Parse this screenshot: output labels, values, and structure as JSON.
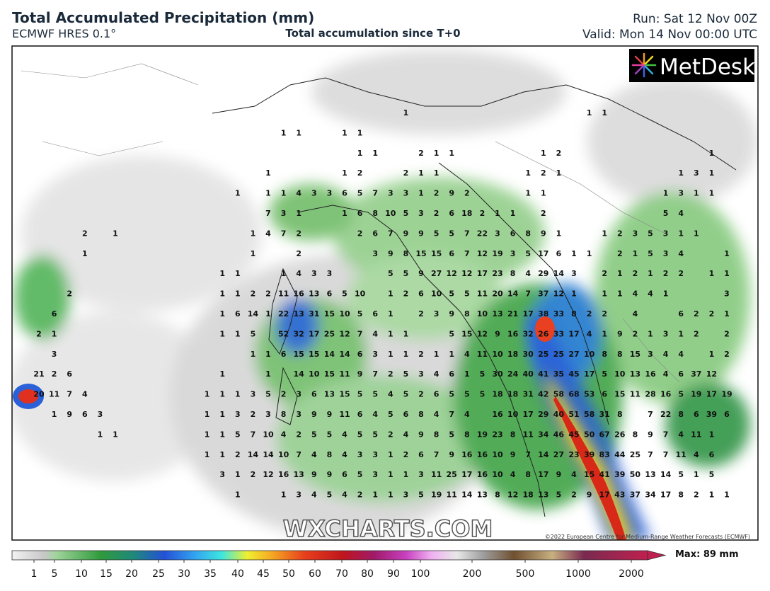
{
  "header": {
    "title": "Total Accumulated Precipitation (mm)",
    "model": "ECMWF HRES 0.1°",
    "subtitle": "Total accumulation since T+0",
    "run": "Run: Sat 12 Nov 00Z",
    "valid": "Valid: Mon 14 Nov 00:00 UTC"
  },
  "logo": "MetDesk",
  "watermark": "WXCHARTS.COM",
  "credit": "©2022 European Centre for Medium-Range Weather Forecasts (ECMWF)",
  "map": {
    "values": [
      [
        null,
        null,
        null,
        null,
        null,
        null,
        null,
        null,
        null,
        null,
        null,
        null,
        null,
        null,
        null,
        null,
        null,
        null,
        null,
        null,
        null,
        null,
        null,
        null,
        1,
        null,
        null,
        null,
        null,
        null,
        null,
        null,
        null,
        null,
        null,
        null,
        1,
        1
      ],
      [
        null,
        null,
        null,
        null,
        null,
        null,
        null,
        null,
        null,
        null,
        null,
        null,
        null,
        null,
        null,
        null,
        1,
        1,
        null,
        null,
        1,
        1
      ],
      [
        null,
        null,
        null,
        null,
        null,
        null,
        null,
        null,
        null,
        null,
        null,
        null,
        null,
        null,
        null,
        null,
        null,
        null,
        null,
        null,
        null,
        1,
        1,
        null,
        null,
        2,
        1,
        1,
        null,
        null,
        null,
        null,
        null,
        1,
        2,
        null,
        null,
        null,
        null,
        null,
        null,
        null,
        null,
        null,
        1
      ],
      [
        null,
        null,
        null,
        null,
        null,
        null,
        null,
        null,
        null,
        null,
        null,
        null,
        null,
        null,
        null,
        1,
        null,
        null,
        null,
        null,
        1,
        2,
        null,
        null,
        2,
        1,
        1,
        null,
        null,
        null,
        null,
        null,
        1,
        2,
        1,
        null,
        null,
        null,
        null,
        null,
        null,
        null,
        1,
        3,
        1
      ],
      [
        null,
        null,
        null,
        null,
        null,
        null,
        null,
        null,
        null,
        null,
        null,
        null,
        null,
        1,
        null,
        1,
        1,
        4,
        3,
        3,
        6,
        5,
        7,
        3,
        3,
        1,
        2,
        9,
        2,
        null,
        null,
        null,
        1,
        1,
        null,
        null,
        null,
        null,
        null,
        null,
        null,
        1,
        3,
        1,
        1
      ],
      [
        null,
        null,
        null,
        null,
        null,
        null,
        null,
        null,
        null,
        null,
        null,
        null,
        null,
        null,
        null,
        7,
        3,
        1,
        null,
        null,
        1,
        6,
        8,
        10,
        5,
        3,
        2,
        6,
        18,
        2,
        1,
        1,
        null,
        2,
        null,
        null,
        null,
        null,
        null,
        null,
        null,
        5,
        4
      ],
      [
        null,
        null,
        null,
        2,
        null,
        1,
        null,
        null,
        null,
        null,
        null,
        null,
        null,
        null,
        1,
        4,
        7,
        2,
        null,
        null,
        null,
        2,
        6,
        7,
        9,
        9,
        5,
        5,
        7,
        22,
        3,
        6,
        8,
        9,
        1,
        null,
        null,
        1,
        2,
        3,
        5,
        3,
        1,
        1
      ],
      [
        null,
        null,
        null,
        1,
        null,
        null,
        null,
        null,
        null,
        null,
        null,
        null,
        null,
        null,
        1,
        null,
        null,
        2,
        null,
        null,
        null,
        null,
        3,
        9,
        8,
        15,
        15,
        6,
        7,
        12,
        19,
        3,
        5,
        17,
        6,
        1,
        1,
        null,
        2,
        1,
        5,
        3,
        4,
        null,
        null,
        1
      ],
      [
        null,
        null,
        null,
        null,
        null,
        null,
        null,
        null,
        null,
        null,
        null,
        null,
        1,
        1,
        null,
        null,
        1,
        4,
        3,
        3,
        null,
        null,
        null,
        5,
        5,
        9,
        27,
        12,
        12,
        17,
        23,
        8,
        4,
        29,
        14,
        3,
        null,
        2,
        1,
        2,
        1,
        2,
        2,
        null,
        1,
        1
      ],
      [
        null,
        null,
        2,
        null,
        null,
        null,
        null,
        null,
        null,
        null,
        null,
        null,
        1,
        1,
        2,
        2,
        11,
        16,
        13,
        6,
        5,
        10,
        null,
        1,
        2,
        6,
        10,
        5,
        5,
        11,
        20,
        14,
        7,
        37,
        12,
        1,
        null,
        1,
        1,
        4,
        4,
        1,
        null,
        null,
        null,
        3
      ],
      [
        null,
        6,
        null,
        null,
        null,
        null,
        null,
        null,
        null,
        null,
        null,
        null,
        1,
        6,
        14,
        1,
        22,
        13,
        31,
        15,
        10,
        5,
        6,
        1,
        null,
        2,
        3,
        9,
        8,
        10,
        13,
        21,
        17,
        38,
        33,
        8,
        2,
        2,
        null,
        4,
        null,
        null,
        6,
        2,
        2,
        1
      ],
      [
        2,
        1,
        null,
        null,
        null,
        null,
        null,
        null,
        null,
        null,
        null,
        null,
        1,
        1,
        5,
        null,
        52,
        32,
        17,
        25,
        12,
        7,
        4,
        1,
        1,
        null,
        null,
        5,
        15,
        12,
        9,
        16,
        32,
        26,
        33,
        17,
        4,
        1,
        9,
        2,
        1,
        3,
        1,
        2,
        null,
        2
      ],
      [
        null,
        3,
        null,
        null,
        null,
        null,
        null,
        null,
        null,
        null,
        null,
        null,
        null,
        null,
        1,
        1,
        6,
        15,
        15,
        14,
        14,
        6,
        3,
        1,
        1,
        2,
        1,
        1,
        4,
        11,
        10,
        18,
        30,
        25,
        25,
        27,
        10,
        8,
        8,
        15,
        3,
        4,
        4,
        null,
        1,
        2
      ],
      [
        21,
        2,
        6,
        null,
        null,
        null,
        null,
        null,
        null,
        null,
        null,
        null,
        1,
        null,
        null,
        1,
        null,
        14,
        10,
        15,
        11,
        9,
        7,
        2,
        5,
        3,
        4,
        6,
        1,
        5,
        30,
        24,
        40,
        41,
        35,
        45,
        17,
        5,
        10,
        13,
        16,
        4,
        6,
        37,
        12
      ],
      [
        20,
        11,
        7,
        4,
        null,
        null,
        null,
        null,
        null,
        null,
        null,
        1,
        1,
        1,
        3,
        5,
        2,
        3,
        6,
        13,
        15,
        5,
        5,
        4,
        5,
        2,
        6,
        5,
        5,
        5,
        18,
        18,
        31,
        42,
        58,
        68,
        53,
        6,
        15,
        11,
        28,
        16,
        5,
        19,
        17,
        19
      ],
      [
        null,
        1,
        9,
        6,
        3,
        null,
        null,
        null,
        null,
        null,
        null,
        1,
        1,
        3,
        2,
        3,
        8,
        3,
        9,
        9,
        11,
        6,
        4,
        5,
        6,
        8,
        4,
        7,
        4,
        null,
        16,
        10,
        17,
        29,
        40,
        51,
        58,
        31,
        8,
        null,
        7,
        22,
        8,
        6,
        39,
        6
      ],
      [
        null,
        null,
        null,
        null,
        1,
        1,
        null,
        null,
        null,
        null,
        null,
        1,
        1,
        5,
        7,
        10,
        4,
        2,
        5,
        5,
        4,
        5,
        5,
        2,
        4,
        9,
        8,
        5,
        8,
        19,
        23,
        8,
        11,
        34,
        46,
        45,
        50,
        67,
        26,
        8,
        9,
        7,
        4,
        11,
        1
      ],
      [
        null,
        null,
        null,
        null,
        null,
        null,
        null,
        null,
        null,
        null,
        null,
        1,
        1,
        2,
        14,
        14,
        10,
        7,
        4,
        8,
        4,
        3,
        3,
        1,
        2,
        6,
        7,
        9,
        16,
        16,
        10,
        9,
        7,
        14,
        27,
        23,
        39,
        83,
        44,
        25,
        7,
        7,
        11,
        4,
        6
      ],
      [
        null,
        null,
        null,
        null,
        null,
        null,
        null,
        null,
        null,
        null,
        null,
        null,
        3,
        1,
        2,
        12,
        16,
        13,
        9,
        9,
        6,
        5,
        3,
        1,
        1,
        3,
        11,
        25,
        17,
        16,
        10,
        4,
        8,
        17,
        9,
        4,
        15,
        41,
        39,
        50,
        13,
        14,
        5,
        1,
        5
      ],
      [
        null,
        null,
        null,
        null,
        null,
        null,
        null,
        null,
        null,
        null,
        null,
        null,
        null,
        1,
        null,
        null,
        1,
        3,
        4,
        5,
        4,
        2,
        1,
        1,
        3,
        5,
        19,
        11,
        14,
        13,
        8,
        12,
        18,
        13,
        5,
        2,
        9,
        17,
        43,
        37,
        34,
        17,
        8,
        2,
        1,
        1
      ]
    ]
  },
  "colorbar": {
    "ticks": [
      1,
      5,
      10,
      15,
      20,
      25,
      30,
      35,
      40,
      45,
      50,
      60,
      70,
      80,
      90,
      100,
      200,
      500,
      1000,
      2000
    ],
    "max_label": "Max: 89 mm"
  }
}
